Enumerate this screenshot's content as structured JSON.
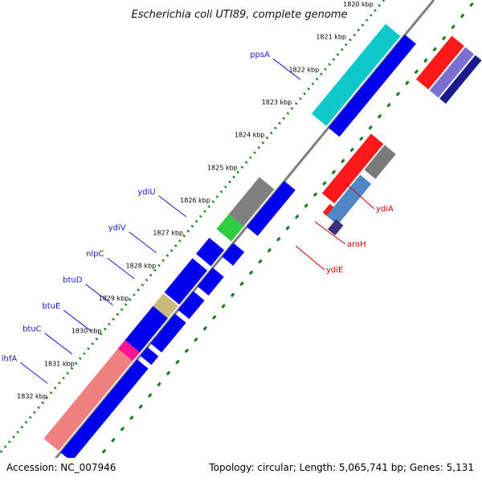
{
  "title": "Escherichia coli UTI89, complete genome",
  "footer": {
    "accession": "Accession: NC_007946",
    "summary": "Topology: circular; Length: 5,065,741 bp; Genes: 5,131"
  },
  "ticks": [
    {
      "label": "1820 kbp",
      "kbp": 1820
    },
    {
      "label": "1821 kbp",
      "kbp": 1821
    },
    {
      "label": "1822 kbp",
      "kbp": 1822
    },
    {
      "label": "1823 kbp",
      "kbp": 1823
    },
    {
      "label": "1824 kbp",
      "kbp": 1824
    },
    {
      "label": "1825 kbp",
      "kbp": 1825
    },
    {
      "label": "1826 kbp",
      "kbp": 1826
    },
    {
      "label": "1827 kbp",
      "kbp": 1827
    },
    {
      "label": "1828 kbp",
      "kbp": 1828
    },
    {
      "label": "1829 kbp",
      "kbp": 1829
    },
    {
      "label": "1830 kbp",
      "kbp": 1830
    },
    {
      "label": "1831 kbp",
      "kbp": 1831
    },
    {
      "label": "1832 kbp",
      "kbp": 1832
    }
  ],
  "gene_labels_left": [
    {
      "name": "ppsA",
      "kbp": 1821.6
    },
    {
      "name": "ydiU",
      "kbp": 1825.8
    },
    {
      "name": "ydiV",
      "kbp": 1826.9
    },
    {
      "name": "nlpC",
      "kbp": 1827.7
    },
    {
      "name": "btuD",
      "kbp": 1828.5
    },
    {
      "name": "btuE",
      "kbp": 1829.3
    },
    {
      "name": "btuC",
      "kbp": 1830.0
    },
    {
      "name": "ihfA",
      "kbp": 1830.9
    }
  ],
  "gene_labels_right": [
    {
      "name": "ydiA",
      "kbp": 1825.9
    },
    {
      "name": "aroH",
      "kbp": 1826.6
    },
    {
      "name": "ydiE",
      "kbp": 1827.4
    }
  ],
  "colors": {
    "label_blue": "#1a1acc",
    "label_red": "#cc0000",
    "cds_blue": "#0000ee",
    "gc_dots": "#1a7a1a",
    "backbone": "#808080"
  }
}
